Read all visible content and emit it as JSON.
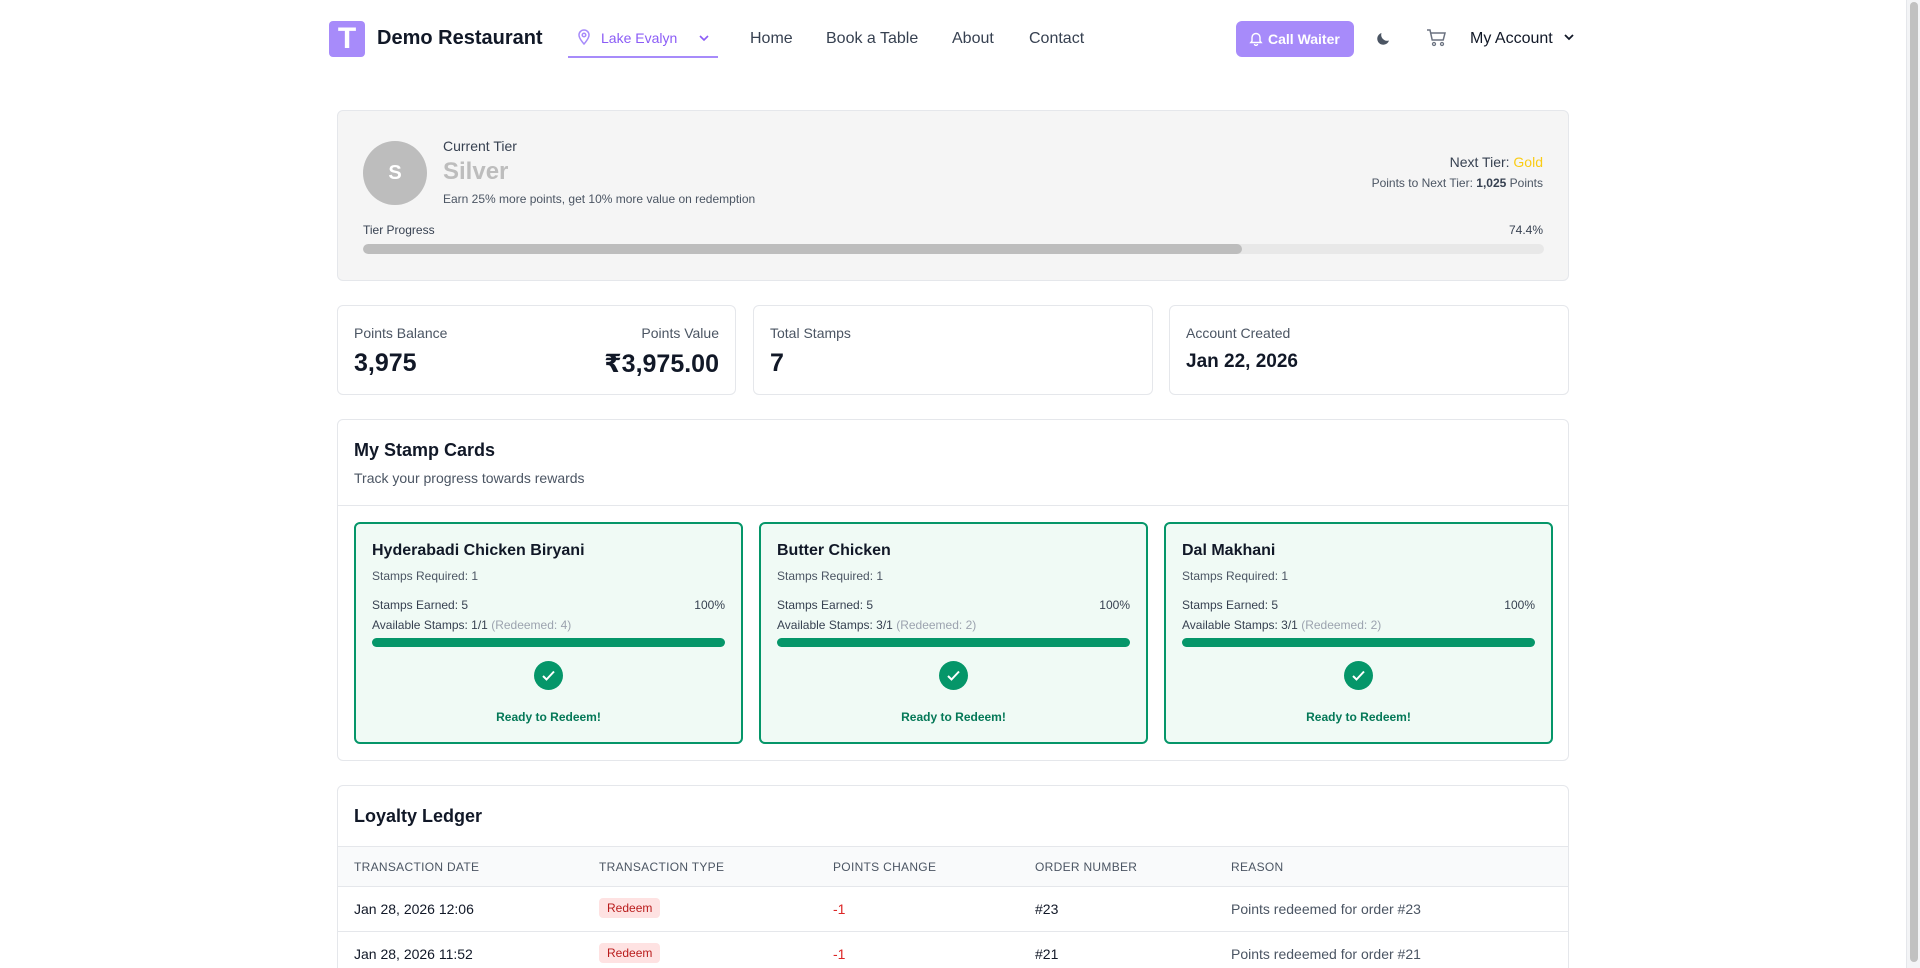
{
  "header": {
    "logo_letter": "T",
    "brand": "Demo Restaurant",
    "location": "Lake Evalyn",
    "nav": [
      "Home",
      "Book a Table",
      "About",
      "Contact"
    ],
    "call_waiter": "Call Waiter",
    "account": "My Account",
    "accent_color": "#a78bfa"
  },
  "tier": {
    "avatar_letter": "S",
    "current_label": "Current Tier",
    "current_tier": "Silver",
    "description": "Earn 25% more points, get 10% more value on redemption",
    "next_label": "Next Tier: ",
    "next_tier": "Gold",
    "to_next_label": "Points to Next Tier: ",
    "to_next_value": "1,025",
    "to_next_unit": " Points",
    "progress_label": "Tier Progress",
    "progress_text": "74.4%",
    "progress_value": 0.744
  },
  "stats": {
    "points_balance_label": "Points Balance",
    "points_balance": "3,975",
    "points_value_label": "Points Value",
    "points_value": "₹3,975.00",
    "total_stamps_label": "Total Stamps",
    "total_stamps": "7",
    "account_created_label": "Account Created",
    "account_created": "Jan 22, 2026"
  },
  "stamp_cards": {
    "title": "My Stamp Cards",
    "subtitle": "Track your progress towards rewards",
    "cards": [
      {
        "name": "Hyderabadi Chicken Biryani",
        "required": "Stamps Required: 1",
        "earned": "Stamps Earned: 5",
        "percent": "100%",
        "available": "Available Stamps: 1/1",
        "redeemed": "(Redeemed: 4)",
        "progress": 1.0,
        "ready": "Ready to Redeem!"
      },
      {
        "name": "Butter Chicken",
        "required": "Stamps Required: 1",
        "earned": "Stamps Earned: 5",
        "percent": "100%",
        "available": "Available Stamps: 3/1",
        "redeemed": "(Redeemed: 2)",
        "progress": 1.0,
        "ready": "Ready to Redeem!"
      },
      {
        "name": "Dal Makhani",
        "required": "Stamps Required: 1",
        "earned": "Stamps Earned: 5",
        "percent": "100%",
        "available": "Available Stamps: 3/1",
        "redeemed": "(Redeemed: 2)",
        "progress": 1.0,
        "ready": "Ready to Redeem!"
      }
    ]
  },
  "ledger": {
    "title": "Loyalty Ledger",
    "columns": [
      "TRANSACTION DATE",
      "TRANSACTION TYPE",
      "POINTS CHANGE",
      "ORDER NUMBER",
      "REASON"
    ],
    "rows": [
      {
        "date": "Jan 28, 2026 12:06",
        "type": "Redeem",
        "change": "-1",
        "order": "#23",
        "reason": "Points redeemed for order #23"
      },
      {
        "date": "Jan 28, 2026 11:52",
        "type": "Redeem",
        "change": "-1",
        "order": "#21",
        "reason": "Points redeemed for order #21"
      }
    ]
  }
}
